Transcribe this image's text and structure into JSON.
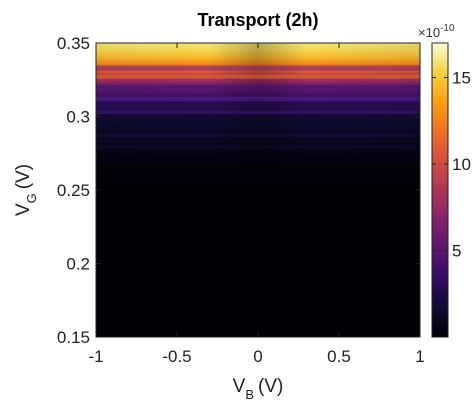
{
  "chart_data": {
    "type": "heatmap",
    "title": "Transport (2h)",
    "xlabel": {
      "main": "V",
      "subscript": "B",
      "unit": "(V)"
    },
    "ylabel": {
      "main": "V",
      "subscript": "G",
      "unit": "(V)"
    },
    "xlim": [
      -1,
      1
    ],
    "ylim": [
      0.15,
      0.35
    ],
    "xticks": [
      "-1",
      "-0.5",
      "0",
      "0.5",
      "1"
    ],
    "yticks": [
      "0.15",
      "0.2",
      "0.25",
      "0.3",
      "0.35"
    ],
    "colorbar": {
      "range": [
        0,
        1.7e-09
      ],
      "multiplier_label": "×10",
      "multiplier_exponent": "-10",
      "ticks": [
        "5",
        "10",
        "15"
      ],
      "colormap": "inferno-like (black–purple–orange–yellow–white)"
    },
    "profile_vs_VG": {
      "VG": [
        0.15,
        0.25,
        0.26,
        0.27,
        0.28,
        0.29,
        0.3,
        0.305,
        0.31,
        0.315,
        0.32,
        0.325,
        0.33,
        0.335,
        0.34,
        0.345,
        0.35
      ],
      "value_e10": [
        0.0,
        0.0,
        0.1,
        0.4,
        0.8,
        1.2,
        1.8,
        2.6,
        3.0,
        4.2,
        5.5,
        8.0,
        10.5,
        12.5,
        14.5,
        15.5,
        16.0
      ]
    }
  }
}
